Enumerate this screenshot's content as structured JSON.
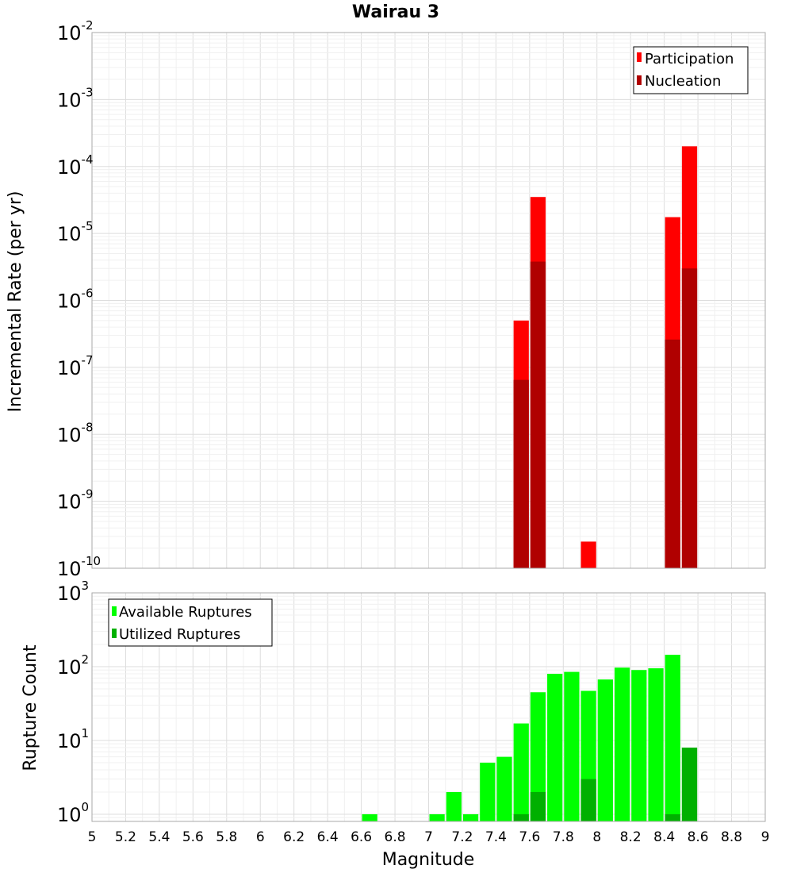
{
  "chart_data": [
    {
      "type": "bar",
      "title": "Wairau 3",
      "xlabel": "",
      "ylabel": "Incremental Rate (per yr)",
      "xlim": [
        5,
        9
      ],
      "ylim": [
        1e-10,
        0.01
      ],
      "y_scale": "log",
      "y_tick_exponents": [
        -2,
        -3,
        -4,
        -5,
        -6,
        -7,
        -8,
        -9,
        -10
      ],
      "grid": true,
      "bar_width": 0.1,
      "legend": {
        "placement": "top-right"
      },
      "colors": {
        "Participation": "#ff0000",
        "Nucleation": "#b00000"
      },
      "series": [
        {
          "name": "Participation",
          "x": [
            7.55,
            7.65,
            7.95,
            8.45,
            8.55
          ],
          "values": [
            5e-07,
            3.5e-05,
            2.5e-10,
            1.75e-05,
            0.0002
          ]
        },
        {
          "name": "Nucleation",
          "x": [
            7.55,
            7.65,
            8.45,
            8.55
          ],
          "values": [
            6.5e-08,
            3.8e-06,
            2.6e-07,
            3e-06
          ]
        }
      ]
    },
    {
      "type": "bar",
      "title": "",
      "xlabel": "Magnitude",
      "ylabel": "Rupture Count",
      "xlim": [
        5,
        9
      ],
      "ylim": [
        0.8,
        1000
      ],
      "y_scale": "log",
      "y_tick_exponents": [
        3,
        2,
        1,
        0
      ],
      "x_ticks": [
        "5",
        "5.2",
        "5.4",
        "5.6",
        "5.8",
        "6",
        "6.2",
        "6.4",
        "6.6",
        "6.8",
        "7",
        "7.2",
        "7.4",
        "7.6",
        "7.8",
        "8",
        "8.2",
        "8.4",
        "8.6",
        "8.8",
        "9"
      ],
      "grid": true,
      "bar_width": 0.1,
      "legend": {
        "placement": "top-left"
      },
      "colors": {
        "Available Ruptures": "#00ff00",
        "Utilized Ruptures": "#00b000"
      },
      "series": [
        {
          "name": "Available Ruptures",
          "x": [
            6.65,
            7.05,
            7.15,
            7.25,
            7.35,
            7.45,
            7.55,
            7.65,
            7.75,
            7.85,
            7.95,
            8.05,
            8.15,
            8.25,
            8.35,
            8.45,
            8.55
          ],
          "values": [
            1,
            1,
            2,
            1,
            5,
            6,
            17,
            45,
            80,
            85,
            47,
            67,
            97,
            90,
            95,
            145,
            8
          ]
        },
        {
          "name": "Utilized Ruptures",
          "x": [
            7.55,
            7.65,
            7.95,
            8.45,
            8.55
          ],
          "values": [
            1,
            2,
            3,
            1,
            8
          ]
        }
      ]
    }
  ]
}
